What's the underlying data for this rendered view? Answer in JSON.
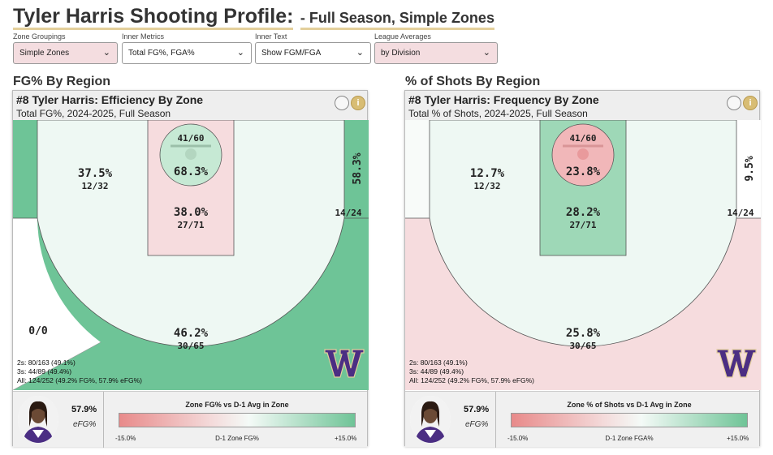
{
  "title": {
    "main": "Tyler Harris Shooting Profile:",
    "sub_prefix": "- Full Season, ",
    "sub_zone": "Simple Zones"
  },
  "controls": [
    {
      "label": "Zone Groupings",
      "value": "Simple Zones"
    },
    {
      "label": "Inner Metrics",
      "value": "Total FG%, FGA%"
    },
    {
      "label": "Inner Text",
      "value": "Show FGM/FGA"
    },
    {
      "label": "League Averages",
      "value": "by Division"
    }
  ],
  "colors": {
    "green_dark": "#6ec497",
    "green_mid": "#9ed8b7",
    "green_light": "#eef8f3",
    "pink": "#f6dcde",
    "pink_mid": "#f1b7b9",
    "red_circle": "#ef9a9a"
  },
  "panels": [
    {
      "section": "FG% By Region",
      "card_title": "#8 Tyler Harris: Efficiency By Zone",
      "card_sub": "Total FG%, 2024-2025, Full Season",
      "zones": {
        "rim_pct": "68.3%",
        "rim_frac": "41/60",
        "paint_pct": "38.0%",
        "paint_frac": "27/71",
        "mid_pct": "37.5%",
        "mid_frac": "12/32",
        "corner_pct": "58.3%",
        "corner_frac": "14/24",
        "three_pct": "46.2%",
        "three_frac": "30/65",
        "corner3_left": "0/0"
      },
      "stats": [
        "2s: 80/163 (49.1%)",
        "3s: 44/89 (49.4%)",
        "All: 124/252 (49.2% FG%, 57.9% eFG%)"
      ],
      "efg_value": "57.9%",
      "efg_label": "eFG%",
      "legend_title": "Zone FG% vs D-1 Avg in Zone",
      "legend_min": "-15.0%",
      "legend_mid": "D-1 Zone FG%",
      "legend_max": "+15.0%"
    },
    {
      "section": "% of Shots By Region",
      "card_title": "#8 Tyler Harris: Frequency By Zone",
      "card_sub": "Total % of Shots, 2024-2025, Full Season",
      "zones": {
        "rim_pct": "23.8%",
        "rim_frac": "41/60",
        "paint_pct": "28.2%",
        "paint_frac": "27/71",
        "mid_pct": "12.7%",
        "mid_frac": "12/32",
        "corner_pct": "9.5%",
        "corner_frac": "14/24",
        "three_pct": "25.8%",
        "three_frac": "30/65"
      },
      "stats": [
        "2s: 80/163 (49.1%)",
        "3s: 44/89 (49.4%)",
        "All: 124/252 (49.2% FG%, 57.9% eFG%)"
      ],
      "efg_value": "57.9%",
      "efg_label": "eFG%",
      "legend_title": "Zone % of Shots vs D-1 Avg in Zone",
      "legend_min": "-15.0%",
      "legend_mid": "D-1 Zone FGA%",
      "legend_max": "+15.0%"
    }
  ]
}
